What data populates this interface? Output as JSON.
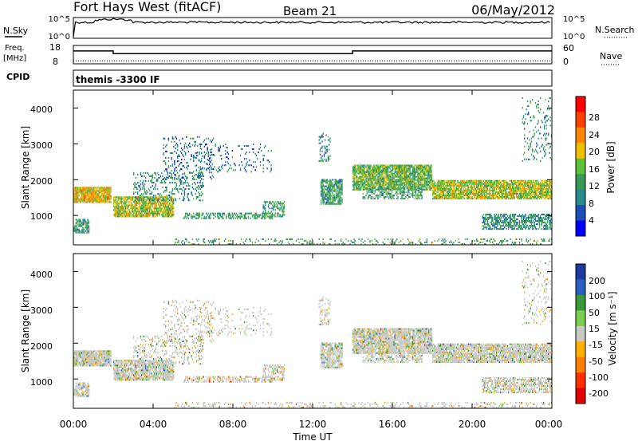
{
  "header": {
    "title": "Fort Hays West (fitACF)",
    "beam": "Beam 21",
    "date": "06/May/2012"
  },
  "noise_panel": {
    "left_label": "N.Sky",
    "left_top_tick": "10^5",
    "left_bottom_tick": "10^0",
    "right_label": "N.Search",
    "right_top_tick": "10^5",
    "right_bottom_tick": "10^0"
  },
  "freq_panel": {
    "left_label_1": "Freq.",
    "left_label_2": "[MHz]",
    "left_top_tick": "18",
    "left_bottom_tick": "8",
    "right_label": "Nave",
    "right_top_tick": "60",
    "right_bottom_tick": "0",
    "freq_steps": [
      {
        "t": 0.0,
        "mhz": 15
      },
      {
        "t": 2.0,
        "mhz": 13.5
      },
      {
        "t": 14.0,
        "mhz": 15
      },
      {
        "t": 24.0,
        "mhz": 15
      }
    ],
    "nave_level": 10
  },
  "cpid_panel": {
    "label": "CPID",
    "text": "themis -3300 IF"
  },
  "power_panel": {
    "ylabel": "Slant Range [km]",
    "yticks": [
      "1000",
      "2000",
      "3000",
      "4000"
    ],
    "colorbar_label": "Power [dB]",
    "colorbar_ticks": [
      "4",
      "8",
      "12",
      "16",
      "20",
      "24",
      "28"
    ]
  },
  "velocity_panel": {
    "ylabel": "Slant Range [km]",
    "yticks": [
      "1000",
      "2000",
      "3000",
      "4000"
    ],
    "colorbar_label": "Velocity [m s⁻¹]",
    "colorbar_ticks": [
      "200",
      "100",
      "50",
      "15",
      "-15",
      "-50",
      "-100",
      "-200"
    ]
  },
  "x_axis": {
    "ticks": [
      "00:00",
      "04:00",
      "08:00",
      "12:00",
      "16:00",
      "20:00",
      "00:00"
    ],
    "label": "Time UT"
  },
  "chart_data": {
    "type": "heatmap",
    "x_range_hours": [
      0,
      24
    ],
    "y_range_km": [
      180,
      4500
    ],
    "power_colors": [
      "#0000ff",
      "#1e4fb5",
      "#2c8c8c",
      "#3a9a55",
      "#5cc23a",
      "#f0c000",
      "#ff8800",
      "#ff4000",
      "#ff0000"
    ],
    "velocity_colors": [
      "#1e3aa0",
      "#2b5fc0",
      "#3a9a3a",
      "#7cd050",
      "#c8c8c4",
      "#ffb000",
      "#ff8000",
      "#ff3000",
      "#e00000"
    ],
    "scatter_regions": [
      {
        "t0": 0.0,
        "t1": 1.9,
        "r0": 1350,
        "r1": 1800,
        "density": 0.9,
        "power": 0.65,
        "vel": 0.42
      },
      {
        "t0": 0.0,
        "t1": 0.8,
        "r0": 500,
        "r1": 900,
        "density": 0.7,
        "power": 0.35,
        "vel": 0.45
      },
      {
        "t0": 2.0,
        "t1": 5.0,
        "r0": 950,
        "r1": 1500,
        "density": 0.85,
        "power": 0.55,
        "vel": 0.45
      },
      {
        "t0": 3.0,
        "t1": 6.5,
        "r0": 1400,
        "r1": 2200,
        "density": 0.25,
        "power": 0.3,
        "vel": 0.45
      },
      {
        "t0": 4.5,
        "t1": 7.0,
        "r0": 2000,
        "r1": 3200,
        "density": 0.15,
        "power": 0.2,
        "vel": 0.5
      },
      {
        "t0": 5.5,
        "t1": 10.0,
        "r0": 900,
        "r1": 1050,
        "density": 0.5,
        "power": 0.35,
        "vel": 0.6
      },
      {
        "t0": 6.0,
        "t1": 10.0,
        "r0": 2200,
        "r1": 3000,
        "density": 0.12,
        "power": 0.2,
        "vel": 0.45
      },
      {
        "t0": 9.5,
        "t1": 10.6,
        "r0": 950,
        "r1": 1400,
        "density": 0.45,
        "power": 0.35,
        "vel": 0.55
      },
      {
        "t0": 12.4,
        "t1": 13.5,
        "r0": 1300,
        "r1": 2000,
        "density": 0.7,
        "power": 0.35,
        "vel": 0.45
      },
      {
        "t0": 12.3,
        "t1": 12.9,
        "r0": 2500,
        "r1": 3300,
        "density": 0.25,
        "power": 0.3,
        "vel": 0.5
      },
      {
        "t0": 14.0,
        "t1": 18.0,
        "r0": 1700,
        "r1": 2400,
        "density": 0.85,
        "power": 0.45,
        "vel": 0.45
      },
      {
        "t0": 14.5,
        "t1": 17.5,
        "r0": 1450,
        "r1": 1750,
        "density": 0.4,
        "power": 0.35,
        "vel": 0.45
      },
      {
        "t0": 18.0,
        "t1": 24.0,
        "r0": 1450,
        "r1": 1950,
        "density": 0.85,
        "power": 0.55,
        "vel": 0.43
      },
      {
        "t0": 20.5,
        "t1": 24.0,
        "r0": 600,
        "r1": 1050,
        "density": 0.6,
        "power": 0.3,
        "vel": 0.5
      },
      {
        "t0": 22.5,
        "t1": 24.0,
        "r0": 2500,
        "r1": 4300,
        "density": 0.12,
        "power": 0.3,
        "vel": 0.5
      },
      {
        "t0": 5.0,
        "t1": 24.0,
        "r0": 180,
        "r1": 330,
        "density": 0.2,
        "power": 0.4,
        "vel": 0.6
      }
    ]
  }
}
